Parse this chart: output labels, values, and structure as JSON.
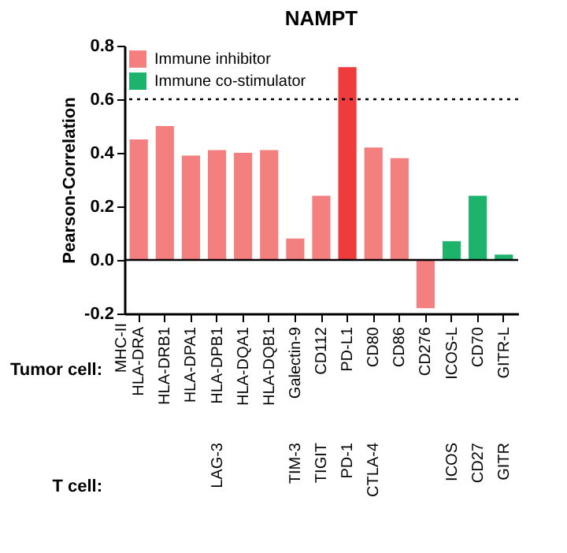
{
  "chart_data": {
    "type": "bar",
    "title": "NAMPT",
    "ylabel": "Pearson-Correlation",
    "categories": [
      "HLA-DRA",
      "HLA-DRB1",
      "HLA-DPA1",
      "HLA-DPB1",
      "HLA-DQA1",
      "HLA-DQB1",
      "Galectin-9",
      "CD112",
      "PD-L1",
      "CD80",
      "CD86",
      "CD276",
      "ICOS-L",
      "CD70",
      "GITR-L"
    ],
    "series": [
      {
        "name": "Immune inhibitor",
        "color": "#f47f7f",
        "colors": [
          "#f47f7f",
          "#f47f7f",
          "#f47f7f",
          "#f47f7f",
          "#f47f7f",
          "#f47f7f",
          "#f47f7f",
          "#f47f7f",
          "#ef3b3b",
          "#f47f7f",
          "#f47f7f",
          "#f47f7f",
          null,
          null,
          null
        ],
        "values": [
          0.45,
          0.5,
          0.39,
          0.41,
          0.4,
          0.41,
          0.08,
          0.24,
          0.72,
          0.42,
          0.38,
          -0.18,
          null,
          null,
          null
        ]
      },
      {
        "name": "Immune co-stimulator",
        "color": "#1db36b",
        "values": [
          null,
          null,
          null,
          null,
          null,
          null,
          null,
          null,
          null,
          null,
          null,
          null,
          0.07,
          0.24,
          0.02
        ]
      }
    ],
    "ylim": [
      -0.2,
      0.8
    ],
    "yticks": [
      -0.2,
      {
        "value": 0,
        "label": "0.0"
      },
      0.2,
      0.4,
      0.6,
      0.8
    ],
    "legend": "top left",
    "ref_lines": [
      {
        "axis": "y",
        "value": 0.6,
        "line_style": "dotted"
      },
      {
        "axis": "y",
        "value": 0,
        "line_style": "solid"
      }
    ],
    "annotations": [
      "Tumor cell:",
      "MHC-II",
      "T cell:",
      "LAG-3",
      "TIM-3",
      "TIGIT",
      "PD-1",
      "CTLA-4",
      "ICOS",
      "CD27",
      "GITR"
    ]
  }
}
